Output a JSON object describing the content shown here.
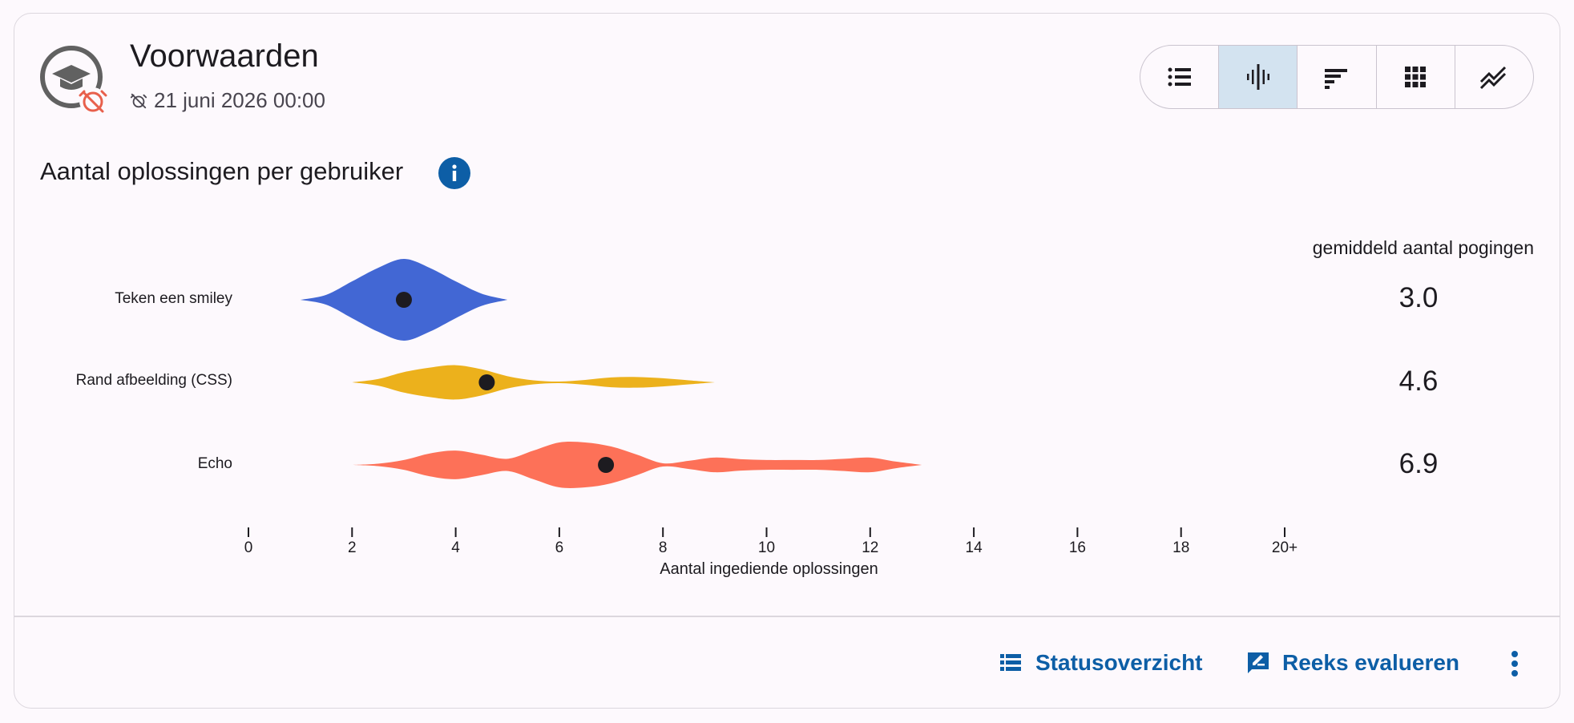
{
  "header": {
    "title": "Voorwaarden",
    "deadline": "21 juni 2026 00:00",
    "icon": "graduation-cap-alarm-off-icon"
  },
  "view_toggle": {
    "buttons": [
      {
        "name": "list-icon",
        "active": false
      },
      {
        "name": "violin-icon",
        "active": true
      },
      {
        "name": "stacked-bars-icon",
        "active": false
      },
      {
        "name": "grid-icon",
        "active": false
      },
      {
        "name": "trend-lines-icon",
        "active": false
      }
    ]
  },
  "section": {
    "title": "Aantal oplossingen per gebruiker",
    "info_icon": "info-icon"
  },
  "averages": {
    "header": "gemiddeld aantal pogingen"
  },
  "chart_data": {
    "type": "violin",
    "xlabel": "Aantal ingediende oplossingen",
    "xlim": [
      0,
      20
    ],
    "xticks": [
      "0",
      "2",
      "4",
      "6",
      "8",
      "10",
      "12",
      "14",
      "16",
      "18",
      "20+"
    ],
    "series": [
      {
        "name": "Teken een smiley",
        "color": "#4267d4",
        "mean": 3.0,
        "mean_label": "3.0",
        "density": [
          [
            1.0,
            0
          ],
          [
            1.5,
            0.12
          ],
          [
            2.0,
            0.45
          ],
          [
            2.5,
            0.78
          ],
          [
            3.0,
            1.0
          ],
          [
            3.5,
            0.78
          ],
          [
            4.0,
            0.45
          ],
          [
            4.5,
            0.15
          ],
          [
            5.0,
            0
          ]
        ]
      },
      {
        "name": "Rand afbeelding (CSS)",
        "color": "#ecb11c",
        "mean": 4.6,
        "mean_label": "4.6",
        "density": [
          [
            2.0,
            0
          ],
          [
            2.5,
            0.08
          ],
          [
            3.0,
            0.25
          ],
          [
            3.5,
            0.36
          ],
          [
            4.0,
            0.42
          ],
          [
            4.5,
            0.32
          ],
          [
            5.0,
            0.15
          ],
          [
            5.5,
            0.05
          ],
          [
            6.0,
            0.02
          ],
          [
            6.5,
            0.06
          ],
          [
            7.0,
            0.12
          ],
          [
            7.5,
            0.13
          ],
          [
            8.0,
            0.1
          ],
          [
            8.5,
            0.05
          ],
          [
            9.0,
            0
          ]
        ]
      },
      {
        "name": "Echo",
        "color": "#fd7158",
        "mean": 6.9,
        "mean_label": "6.9",
        "density": [
          [
            2.0,
            0
          ],
          [
            2.5,
            0.03
          ],
          [
            3.0,
            0.12
          ],
          [
            3.5,
            0.28
          ],
          [
            4.0,
            0.35
          ],
          [
            4.5,
            0.25
          ],
          [
            5.0,
            0.15
          ],
          [
            5.5,
            0.35
          ],
          [
            6.0,
            0.55
          ],
          [
            6.5,
            0.55
          ],
          [
            7.0,
            0.45
          ],
          [
            7.5,
            0.25
          ],
          [
            8.0,
            0.04
          ],
          [
            8.5,
            0.1
          ],
          [
            9.0,
            0.18
          ],
          [
            9.5,
            0.14
          ],
          [
            10.0,
            0.12
          ],
          [
            10.5,
            0.12
          ],
          [
            11.0,
            0.12
          ],
          [
            11.5,
            0.15
          ],
          [
            12.0,
            0.18
          ],
          [
            12.5,
            0.08
          ],
          [
            13.0,
            0
          ]
        ]
      }
    ]
  },
  "footer": {
    "status_label": "Statusoverzicht",
    "evaluate_label": "Reeks evalueren"
  },
  "colors": {
    "accent": "#0d5ea6",
    "active_toggle": "#d3e3f0"
  }
}
